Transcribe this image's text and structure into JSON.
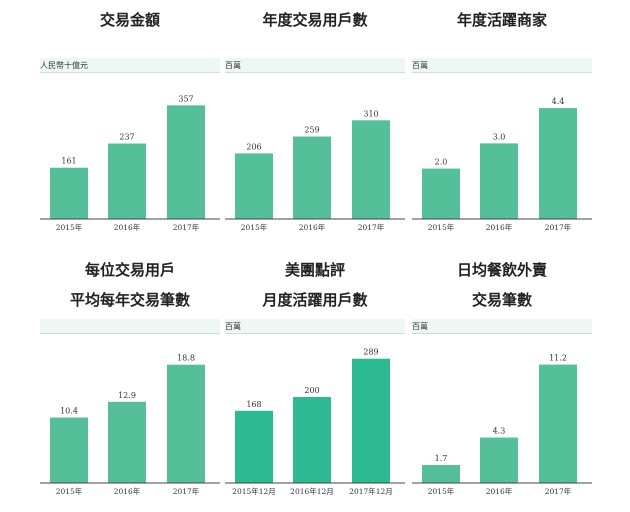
{
  "colors": {
    "bar": "#55bf9a",
    "bar_dark": "#2dba92",
    "band": "#eef7f3",
    "axis": "#444444"
  },
  "chart_data": [
    {
      "type": "bar",
      "title_lines": [
        "交易金額"
      ],
      "unit": "人民幣十億元",
      "categories": [
        "2015年",
        "2016年",
        "2017年"
      ],
      "values": [
        161,
        237,
        357
      ],
      "value_labels": [
        "161",
        "237",
        "357"
      ],
      "ylim": [
        0,
        380
      ],
      "bar_color": "#55bf9a"
    },
    {
      "type": "bar",
      "title_lines": [
        "年度交易用戶數"
      ],
      "unit": "百萬",
      "categories": [
        "2015年",
        "2016年",
        "2017年"
      ],
      "values": [
        206,
        259,
        310
      ],
      "value_labels": [
        "206",
        "259",
        "310"
      ],
      "ylim": [
        0,
        380
      ],
      "bar_color": "#55bf9a"
    },
    {
      "type": "bar",
      "title_lines": [
        "年度活躍商家"
      ],
      "unit": "百萬",
      "categories": [
        "2015年",
        "2016年",
        "2017年"
      ],
      "values": [
        2.0,
        3.0,
        4.4
      ],
      "value_labels": [
        "2.0",
        "3.0",
        "4.4"
      ],
      "ylim": [
        0,
        4.8
      ],
      "bar_color": "#55bf9a"
    },
    {
      "type": "bar",
      "title_lines": [
        "每位交易用戶",
        "平均每年交易筆數"
      ],
      "unit": "",
      "categories": [
        "2015年",
        "2016年",
        "2017年"
      ],
      "values": [
        10.4,
        12.9,
        18.8
      ],
      "value_labels": [
        "10.4",
        "12.9",
        "18.8"
      ],
      "ylim": [
        0,
        20.5
      ],
      "bar_color": "#55bf9a"
    },
    {
      "type": "bar",
      "title_lines": [
        "美團點評",
        "月度活躍用戶數"
      ],
      "unit": "百萬",
      "categories": [
        "2015年12月",
        "2016年12月",
        "2017年12月"
      ],
      "values": [
        168,
        200,
        289
      ],
      "value_labels": [
        "168",
        "200",
        "289"
      ],
      "ylim": [
        0,
        300
      ],
      "bar_color": "#2dba92"
    },
    {
      "type": "bar",
      "title_lines": [
        "日均餐飲外賣",
        "交易筆數"
      ],
      "unit": "百萬",
      "categories": [
        "2015年",
        "2016年",
        "2017年"
      ],
      "values": [
        1.7,
        4.3,
        11.2
      ],
      "value_labels": [
        "1.7",
        "4.3",
        "11.2"
      ],
      "ylim": [
        0,
        12.2
      ],
      "bar_color": "#55bf9a"
    }
  ]
}
